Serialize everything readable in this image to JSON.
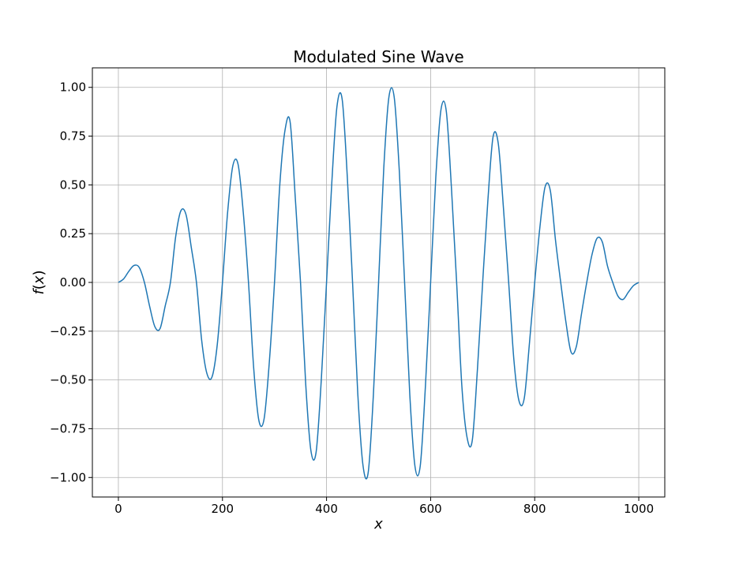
{
  "chart_data": {
    "type": "line",
    "title": "Modulated Sine Wave",
    "xlabel": "x",
    "ylabel_func": "f",
    "ylabel_arg": "x",
    "xlim": [
      -50,
      1050
    ],
    "ylim": [
      -1.1,
      1.1
    ],
    "x_ticks": [
      0,
      200,
      400,
      600,
      800,
      1000
    ],
    "x_tick_labels": [
      "0",
      "200",
      "400",
      "600",
      "800",
      "1000"
    ],
    "y_ticks": [
      -1.0,
      -0.75,
      -0.5,
      -0.25,
      0.0,
      0.25,
      0.5,
      0.75,
      1.0
    ],
    "y_tick_labels": [
      "−1.00",
      "−0.75",
      "−0.50",
      "−0.25",
      "0.00",
      "0.25",
      "0.50",
      "0.75",
      "1.00"
    ],
    "grid": true,
    "series": [
      {
        "color": "#1f77b4",
        "x": [
          0,
          10,
          20,
          30,
          40,
          50,
          60,
          70,
          80,
          90,
          100,
          110,
          120,
          130,
          140,
          150,
          160,
          170,
          180,
          190,
          200,
          210,
          220,
          230,
          240,
          250,
          260,
          270,
          280,
          290,
          300,
          310,
          320,
          330,
          340,
          350,
          360,
          370,
          380,
          390,
          400,
          410,
          420,
          430,
          440,
          450,
          460,
          470,
          480,
          490,
          500,
          510,
          520,
          530,
          540,
          550,
          560,
          570,
          580,
          590,
          600,
          610,
          620,
          630,
          640,
          650,
          660,
          670,
          680,
          690,
          700,
          710,
          720,
          730,
          740,
          750,
          760,
          770,
          780,
          790,
          800,
          810,
          820,
          830,
          840,
          850,
          860,
          870,
          880,
          890,
          900,
          910,
          920,
          930,
          940,
          950,
          960,
          970,
          980,
          990,
          1000
        ],
        "y": [
          0.0,
          0.018,
          0.057,
          0.087,
          0.077,
          0.0,
          -0.122,
          -0.226,
          -0.237,
          -0.12,
          0.0,
          0.233,
          0.367,
          0.347,
          0.181,
          0.0,
          -0.296,
          -0.466,
          -0.484,
          -0.319,
          0.0,
          0.362,
          0.599,
          0.605,
          0.358,
          0.0,
          -0.439,
          -0.708,
          -0.699,
          -0.41,
          0.0,
          0.493,
          0.777,
          0.823,
          0.43,
          0.0,
          -0.523,
          -0.863,
          -0.869,
          -0.495,
          0.0,
          0.506,
          0.901,
          0.939,
          0.536,
          0.0,
          -0.569,
          -0.937,
          -0.975,
          -0.577,
          0.0,
          0.587,
          0.953,
          0.95,
          0.564,
          0.0,
          -0.576,
          -0.944,
          -0.942,
          -0.532,
          0.0,
          0.54,
          0.887,
          0.88,
          0.486,
          0.0,
          -0.53,
          -0.794,
          -0.811,
          -0.444,
          0.0,
          0.419,
          0.746,
          0.712,
          0.38,
          0.0,
          -0.396,
          -0.609,
          -0.593,
          -0.309,
          0.0,
          0.283,
          0.49,
          0.471,
          0.216,
          0.0,
          -0.203,
          -0.358,
          -0.329,
          -0.16,
          0.0,
          0.141,
          0.227,
          0.207,
          0.083,
          0.0,
          -0.07,
          -0.087,
          -0.05,
          -0.016,
          0.0
        ]
      }
    ]
  }
}
